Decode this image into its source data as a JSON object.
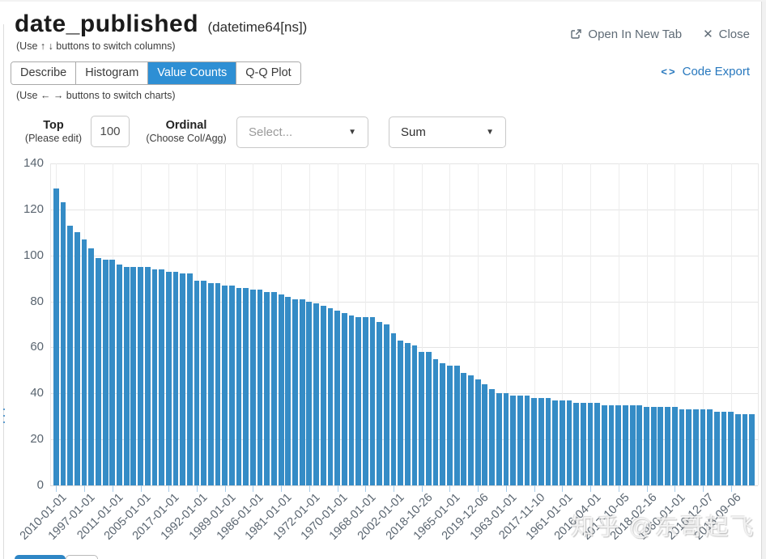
{
  "window": {
    "title": "date_published",
    "dtype": "(datetime64[ns])",
    "columns_hint": "(Use ↑ ↓ buttons to switch columns)",
    "charts_hint": "(Use ← → buttons to switch charts)"
  },
  "header_actions": {
    "open_in_new_tab": "Open In New Tab",
    "close": "Close",
    "code_export": "Code Export",
    "code_glyph": "<>"
  },
  "tabs": {
    "items": [
      "Describe",
      "Histogram",
      "Value Counts",
      "Q-Q Plot"
    ],
    "active": "Value Counts"
  },
  "controls": {
    "top_label": "Top",
    "top_sublabel": "(Please edit)",
    "top_value": "100",
    "ordinal_label": "Ordinal",
    "ordinal_sublabel": "(Choose Col/Agg)",
    "column_select_placeholder": "Select...",
    "agg_select_value": "Sum",
    "caret": "▼"
  },
  "watermark": "知乎 @东哥起飞",
  "colors": {
    "bar": "#358cc6",
    "active_tab": "#2e8fd4",
    "link_blue": "#2878be",
    "xtick": "#a8cce8"
  },
  "chart_data": {
    "type": "bar",
    "title": "",
    "xlabel": "",
    "ylabel": "",
    "ylim": [
      0,
      140
    ],
    "yticks": [
      0,
      20,
      40,
      60,
      80,
      100,
      120,
      140
    ],
    "grid": true,
    "legend": false,
    "tick_every": 4,
    "tick_labels": [
      "2010-01-01",
      "1997-01-01",
      "2011-01-01",
      "2005-01-01",
      "2017-01-01",
      "1992-01-01",
      "1989-01-01",
      "1986-01-01",
      "1981-01-01",
      "1972-01-01",
      "1970-01-01",
      "1968-01-01",
      "2002-01-01",
      "2018-10-26",
      "1965-01-01",
      "2019-12-06",
      "1963-01-01",
      "2017-11-10",
      "1961-01-01",
      "2016-04-01",
      "2017-10-05",
      "2018-02-16",
      "1960-01-01",
      "2016-12-07",
      "2013-09-06"
    ],
    "values": [
      129,
      123,
      113,
      110,
      107,
      103,
      99,
      98,
      98,
      96,
      95,
      95,
      95,
      95,
      94,
      94,
      93,
      93,
      92,
      92,
      89,
      89,
      88,
      88,
      87,
      87,
      86,
      86,
      85,
      85,
      84,
      84,
      83,
      82,
      81,
      81,
      80,
      79,
      78,
      77,
      76,
      75,
      74,
      73,
      73,
      73,
      71,
      70,
      66,
      63,
      62,
      61,
      58,
      58,
      55,
      53,
      52,
      52,
      49,
      48,
      46,
      44,
      42,
      40,
      40,
      39,
      39,
      39,
      38,
      38,
      38,
      37,
      37,
      37,
      36,
      36,
      36,
      36,
      35,
      35,
      35,
      35,
      35,
      35,
      34,
      34,
      34,
      34,
      34,
      33,
      33,
      33,
      33,
      33,
      32,
      32,
      32,
      31,
      31,
      31
    ]
  }
}
